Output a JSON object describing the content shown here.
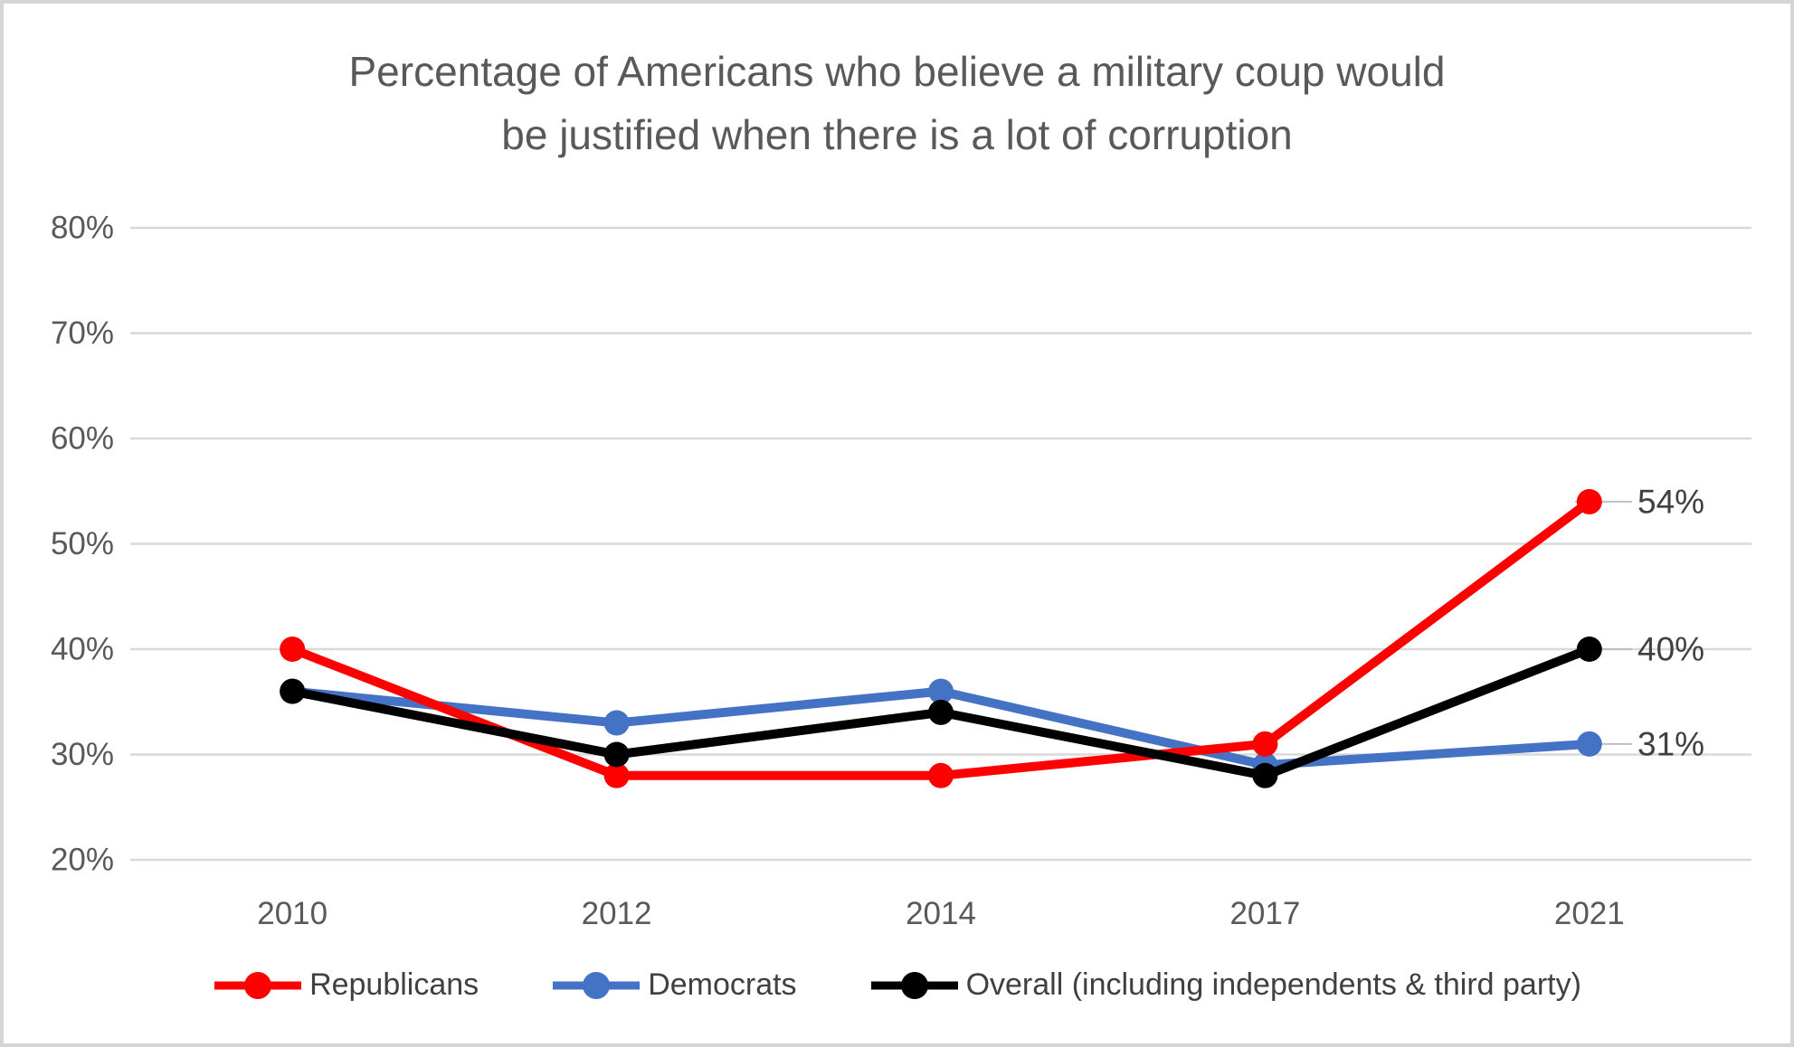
{
  "title_lines": [
    "Percentage of Americans who believe a military coup would",
    "be justified when there is a lot of corruption"
  ],
  "title_color": "#595959",
  "frame": {
    "border_color": "#D5D5D5",
    "background": "#FFFFFF"
  },
  "chart_data": {
    "type": "line",
    "categories": [
      "2010",
      "2012",
      "2014",
      "2017",
      "2021"
    ],
    "series": [
      {
        "name": "Republicans",
        "color": "#FF0000",
        "values": [
          40,
          28,
          28,
          31,
          54
        ],
        "end_label": "54%"
      },
      {
        "name": "Democrats",
        "color": "#4472C4",
        "values": [
          36,
          33,
          36,
          29,
          31
        ],
        "end_label": "31%"
      },
      {
        "name": "Overall (including independents & third party)",
        "color": "#000000",
        "values": [
          36,
          30,
          34,
          28,
          40
        ],
        "end_label": "40%"
      }
    ],
    "title": "Percentage of Americans who believe a military coup would be justified when there is a lot of corruption",
    "xlabel": "",
    "ylabel": "",
    "ylim": [
      20,
      80
    ],
    "ytick_step": 10,
    "ytick_labels": [
      "20%",
      "30%",
      "40%",
      "50%",
      "60%",
      "70%",
      "80%"
    ],
    "grid": true,
    "gridline_color": "#D9D9D9",
    "leader_line_color": "#BFBFBF",
    "axis_label_color": "#595959",
    "data_label_color": "#404040",
    "legend_position": "bottom"
  }
}
